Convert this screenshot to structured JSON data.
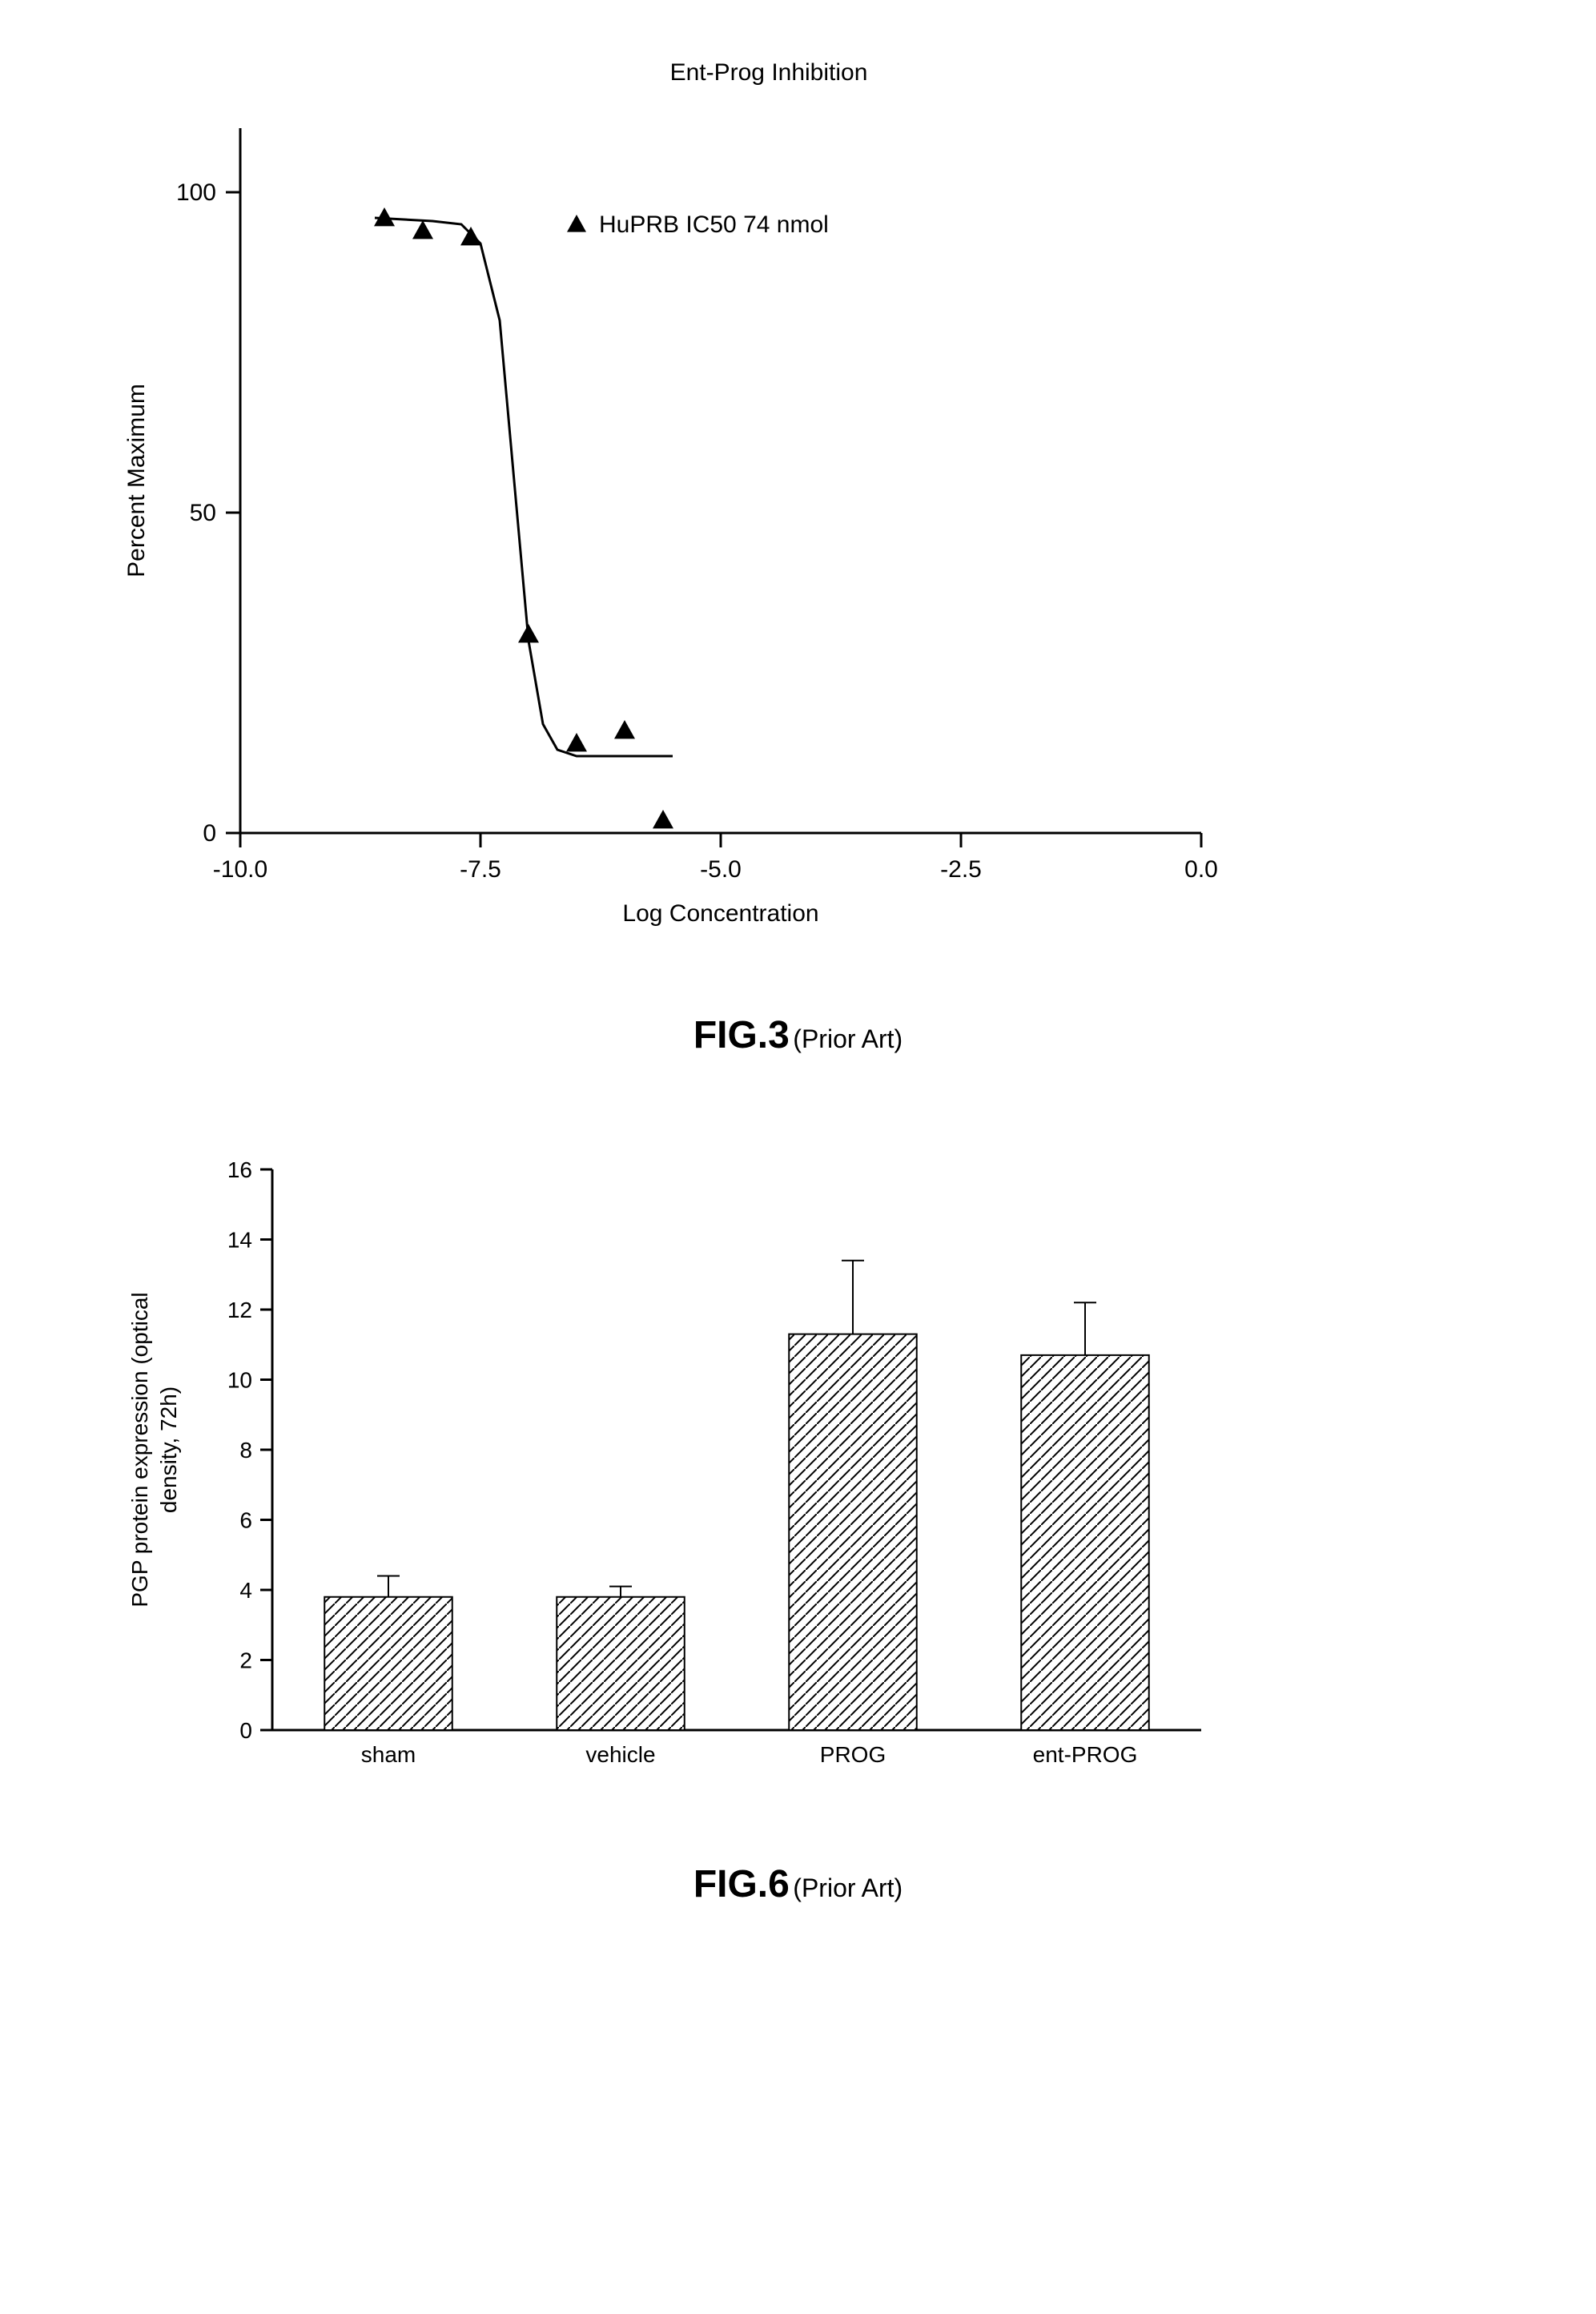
{
  "fig3": {
    "type": "scatter-line",
    "title": "Ent-Prog  Inhibition",
    "xlabel": "Log  Concentration",
    "ylabel": "Percent  Maximum",
    "legend_marker": "triangle",
    "legend_text": "HuPRB  IC50  74  nmol",
    "xlim": [
      -10.0,
      0.0
    ],
    "ylim": [
      0,
      110
    ],
    "xticks": [
      -10.0,
      -7.5,
      -5.0,
      -2.5,
      0.0
    ],
    "xtick_labels": [
      "-10.0",
      "-7.5",
      "-5.0",
      "-2.5",
      "0.0"
    ],
    "yticks": [
      0,
      50,
      100
    ],
    "ytick_labels": [
      "0",
      "50",
      "100"
    ],
    "scatter_points": [
      {
        "x": -8.5,
        "y": 96
      },
      {
        "x": -8.1,
        "y": 94
      },
      {
        "x": -7.6,
        "y": 93
      },
      {
        "x": -7.0,
        "y": 31
      },
      {
        "x": -6.5,
        "y": 14
      },
      {
        "x": -6.0,
        "y": 16
      },
      {
        "x": -5.6,
        "y": 2
      }
    ],
    "curve_points": [
      {
        "x": -8.6,
        "y": 96
      },
      {
        "x": -8.0,
        "y": 95.5
      },
      {
        "x": -7.7,
        "y": 95
      },
      {
        "x": -7.5,
        "y": 92
      },
      {
        "x": -7.3,
        "y": 80
      },
      {
        "x": -7.15,
        "y": 55
      },
      {
        "x": -7.0,
        "y": 30
      },
      {
        "x": -6.85,
        "y": 17
      },
      {
        "x": -6.7,
        "y": 13
      },
      {
        "x": -6.5,
        "y": 12
      },
      {
        "x": -5.5,
        "y": 12
      }
    ],
    "marker_color": "#000000",
    "line_color": "#000000",
    "line_width": 3,
    "axis_color": "#000000",
    "axis_width": 3,
    "background_color": "#ffffff",
    "title_fontsize": 30,
    "label_fontsize": 30,
    "tick_fontsize": 30,
    "legend_fontsize": 30,
    "figure_label_main": "FIG.3",
    "figure_label_sub": "(Prior  Art)"
  },
  "fig6": {
    "type": "bar",
    "ylabel_line1": "PGP  protein  expression  (optical",
    "ylabel_line2": "density,  72h)",
    "categories": [
      "sham",
      "vehicle",
      "PROG",
      "ent-PROG"
    ],
    "values": [
      3.8,
      3.8,
      11.3,
      10.7
    ],
    "errors": [
      0.6,
      0.3,
      2.1,
      1.5
    ],
    "ylim": [
      0,
      16
    ],
    "yticks": [
      0,
      2,
      4,
      6,
      8,
      10,
      12,
      14,
      16
    ],
    "ytick_labels": [
      "0",
      "2",
      "4",
      "6",
      "8",
      "10",
      "12",
      "14",
      "16"
    ],
    "bar_fill": "hatch-diagonal",
    "bar_border_color": "#000000",
    "bar_border_width": 2,
    "axis_color": "#000000",
    "axis_width": 3,
    "error_bar_color": "#000000",
    "error_bar_width": 2,
    "background_color": "#ffffff",
    "label_fontsize": 28,
    "tick_fontsize": 28,
    "category_fontsize": 28,
    "bar_width_ratio": 0.55,
    "figure_label_main": "FIG.6",
    "figure_label_sub": "(Prior  Art)"
  }
}
